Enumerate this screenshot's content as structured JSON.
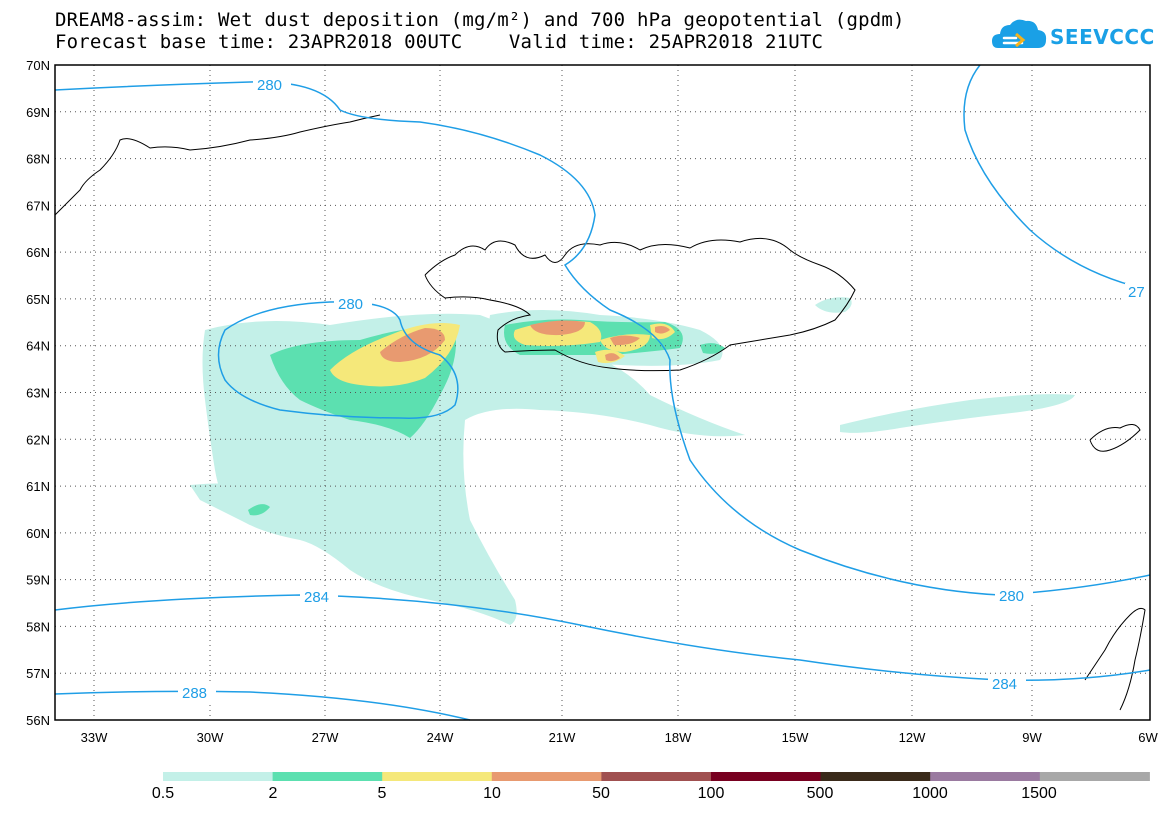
{
  "header": {
    "title_line1": "DREAM8-assim: Wet dust deposition (mg/m²) and 700 hPa geopotential (gpdm)",
    "title_line2": "Forecast base time: 23APR2018 00UTC    Valid time: 25APR2018 21UTC"
  },
  "logo": {
    "text": "SEEVCCC",
    "icon": "cloud-icon",
    "color": "#1aa0e6"
  },
  "map": {
    "lat_labels": [
      "70N",
      "69N",
      "68N",
      "67N",
      "66N",
      "65N",
      "64N",
      "63N",
      "62N",
      "61N",
      "60N",
      "59N",
      "58N",
      "57N",
      "56N"
    ],
    "lon_labels": [
      "33W",
      "30W",
      "27W",
      "24W",
      "21W",
      "18W",
      "15W",
      "12W",
      "9W",
      "6W"
    ],
    "contour_labels": [
      "280",
      "280",
      "280",
      "284",
      "284",
      "288",
      "27"
    ],
    "contour_color": "#1f9ee6"
  },
  "colorbar": {
    "labels": [
      "0.5",
      "2",
      "5",
      "10",
      "50",
      "100",
      "500",
      "1000",
      "1500"
    ],
    "colors": [
      "#c3f0e8",
      "#5ce0b0",
      "#f5e87a",
      "#e89a70",
      "#a05050",
      "#780020",
      "#3a2a1a",
      "#9a7aa0",
      "#a8a8a8"
    ]
  }
}
